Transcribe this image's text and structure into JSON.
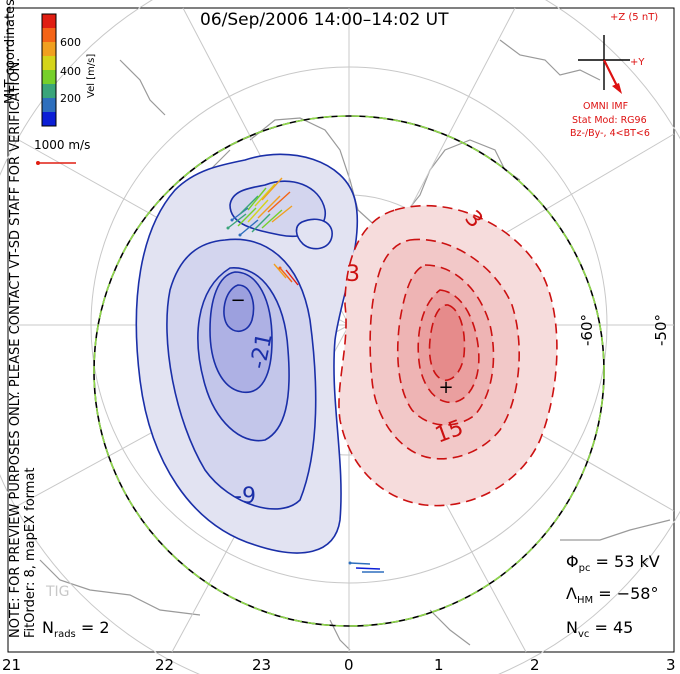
{
  "title": "06/Sep/2006 14:00–14:02 UT",
  "coordinates_label": "MLT coordinates",
  "vel_unit_label": "Vel [m/s]",
  "scale_ticks": [
    "600",
    "400",
    "200"
  ],
  "scale_colors": [
    "#0c1fd6",
    "#2e6fbd",
    "#3aa57a",
    "#76d02a",
    "#d4d41a",
    "#f0a020",
    "#f46417",
    "#e01e12"
  ],
  "vector_ref": "1000 m/s",
  "preview_note": "NOTE: FOR PREVIEW PURPOSES ONLY. PLEASE CONTACT VT-SD STAFF FOR VERIFICATION.",
  "fit_order": "FitOrder: 8, mapEX format",
  "imf": {
    "bz_label": "+Z (5 nT)",
    "by_label": "+Y",
    "source": "OMNI IMF",
    "stat_mod": "Stat Mod: RG96",
    "condition": "Bz-/By-, 4<BT<6"
  },
  "lat_labels": [
    "-60°",
    "-50°"
  ],
  "mlt_labels": [
    "21",
    "22",
    "23",
    "0",
    "1",
    "2",
    "3"
  ],
  "contour_labels": {
    "neg_outer": "-9",
    "neg_inner": "-21",
    "neg_min": "-",
    "pos_outer": "3",
    "pos_edge": "3",
    "pos_inner": "15"
  },
  "stats": {
    "phi_label": "Φ",
    "phi_sub": "pc",
    "phi_value": "= 53 kV",
    "lambda_label": "Λ",
    "lambda_sub": "HM",
    "lambda_value": "= −58°",
    "nvc_label": "N",
    "nvc_sub": "vc",
    "nvc_value": "= 45",
    "nrads_label": "N",
    "nrads_sub": "rads",
    "nrads_value": "= 2"
  },
  "radar_label": "TIG"
}
